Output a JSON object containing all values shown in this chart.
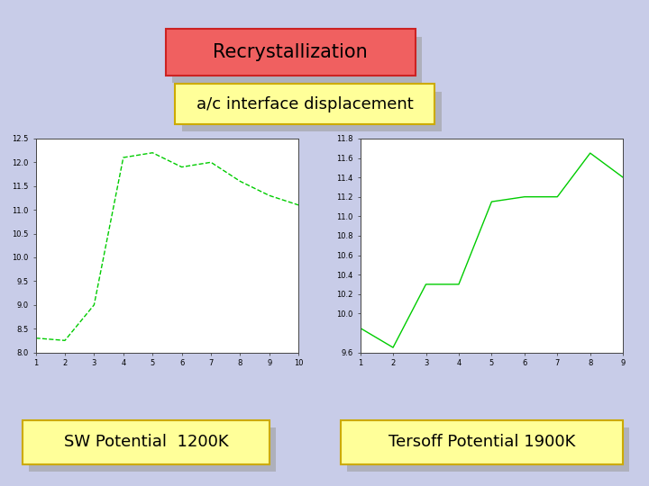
{
  "bg_color": "#c8cce8",
  "title": "Recrystallization",
  "subtitle": "a/c interface displacement",
  "label_sw": "SW Potential  1200K",
  "label_tersoff": "Tersoff Potential 1900K",
  "sw_x": [
    1,
    2,
    3,
    4,
    5,
    6,
    7,
    8,
    9,
    10
  ],
  "sw_y": [
    8.3,
    8.25,
    9.0,
    12.1,
    12.2,
    11.9,
    12.0,
    11.6,
    11.3,
    11.1
  ],
  "tersoff_x": [
    1,
    2,
    3,
    4,
    5,
    6,
    7,
    8,
    9
  ],
  "tersoff_y": [
    9.85,
    9.65,
    10.3,
    10.3,
    11.15,
    11.2,
    11.2,
    11.65,
    11.4
  ],
  "sw_xlim": [
    1,
    10
  ],
  "sw_ylim": [
    8.0,
    12.5
  ],
  "tersoff_xlim": [
    1,
    9
  ],
  "tersoff_ylim": [
    9.6,
    11.0
  ],
  "line_color": "#00cc00",
  "plot_bg": "#ffffff",
  "title_facecolor": "#f06060",
  "title_edgecolor": "#cc2222",
  "subtitle_facecolor": "#ffff99",
  "subtitle_edgecolor": "#ccaa00",
  "label_facecolor": "#ffff99",
  "label_edgecolor": "#ccaa00",
  "shadow_color": "#999999"
}
